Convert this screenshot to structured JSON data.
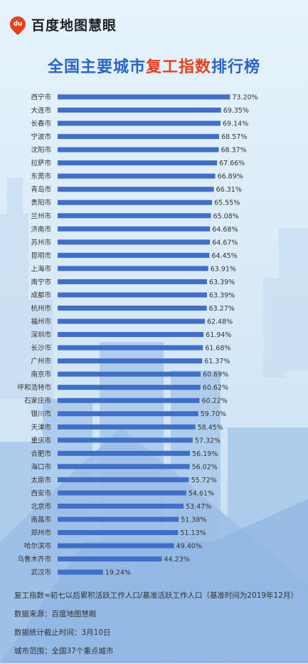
{
  "brand": {
    "logo_mark": "du",
    "name": "百度地图慧眼"
  },
  "title": {
    "prefix": "全国主要城市",
    "highlight": "复工指数",
    "suffix": "排行榜"
  },
  "colors": {
    "bar": "#3f6fc8",
    "title": "#2a64c9",
    "highlight": "#e8401c"
  },
  "chart_data": {
    "type": "bar",
    "orientation": "horizontal",
    "value_suffix": "%",
    "xlim": [
      0,
      80
    ],
    "grid": false,
    "categories": [
      "西宁市",
      "大连市",
      "长春市",
      "宁波市",
      "沈阳市",
      "拉萨市",
      "东莞市",
      "青岛市",
      "贵阳市",
      "兰州市",
      "济南市",
      "苏州市",
      "昆明市",
      "上海市",
      "南宁市",
      "成都市",
      "杭州市",
      "福州市",
      "深圳市",
      "长沙市",
      "广州市",
      "南京市",
      "呼和浩特市",
      "石家庄市",
      "银川市",
      "天津市",
      "重庆市",
      "合肥市",
      "海口市",
      "太原市",
      "西安市",
      "北京市",
      "南昌市",
      "郑州市",
      "哈尔滨市",
      "乌鲁木齐市",
      "武汉市"
    ],
    "values": [
      73.2,
      69.35,
      69.14,
      68.57,
      68.37,
      67.66,
      66.89,
      66.31,
      65.55,
      65.08,
      64.68,
      64.67,
      64.45,
      63.91,
      63.39,
      63.39,
      63.27,
      62.48,
      61.94,
      61.68,
      61.37,
      60.69,
      60.62,
      60.22,
      59.7,
      58.45,
      57.32,
      56.19,
      56.02,
      55.72,
      54.61,
      53.47,
      51.38,
      51.13,
      49.4,
      44.23,
      19.24
    ],
    "labels": [
      "73.20%",
      "69.35%",
      "69.14%",
      "68.57%",
      "68.37%",
      "67.66%",
      "66.89%",
      "66.31%",
      "65.55%",
      "65.08%",
      "64.68%",
      "64.67%",
      "64.45%",
      "63.91%",
      "63.39%",
      "63.39%",
      "63.27%",
      "62.48%",
      "61.94%",
      "61.68%",
      "61.37%",
      "60.69%",
      "60.62%",
      "60.22%",
      "59.70%",
      "58.45%",
      "57.32%",
      "56.19%",
      "56.02%",
      "55.72%",
      "54.61%",
      "53.47%",
      "51.38%",
      "51.13%",
      "49.40%",
      "44.23%",
      "19.24%"
    ]
  },
  "notes": {
    "definition": "复工指数=初七以后累积活跃工作人口/基准活跃工作人口（基准时间为2019年12月）",
    "source": "数据来源：百度地图慧眼",
    "cutoff": "数据统计截止时间：3月10日",
    "scope": "城市范围：全国37个重点城市"
  }
}
